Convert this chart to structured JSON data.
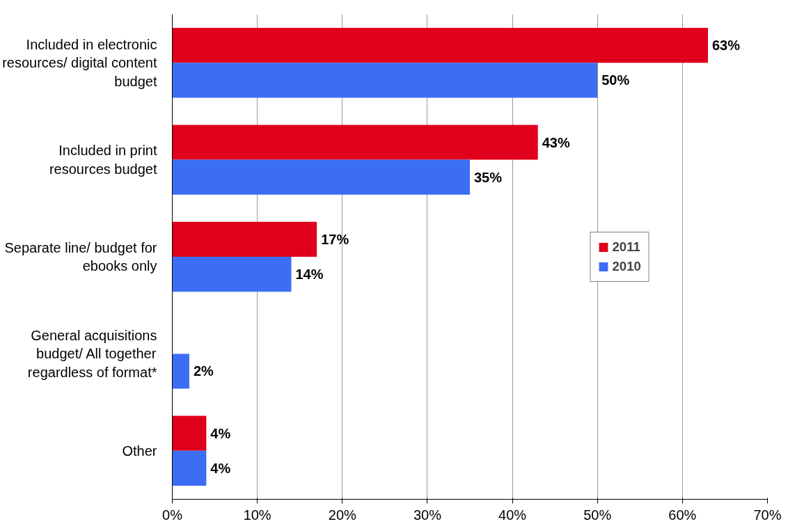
{
  "chart_data": {
    "type": "bar",
    "orientation": "horizontal",
    "categories": [
      "Included in electronic resources/ digital content budget",
      "Included in print resources budget",
      "Separate line/ budget for ebooks only",
      "General acquisitions budget/ All together regardless of format*",
      "Other"
    ],
    "series": [
      {
        "name": "2011",
        "color": "#e0001b",
        "values": [
          63,
          43,
          17,
          null,
          4
        ],
        "value_labels": [
          "63%",
          "43%",
          "17%",
          null,
          "4%"
        ]
      },
      {
        "name": "2010",
        "color": "#3b6ef5",
        "values": [
          50,
          35,
          14,
          2,
          4
        ],
        "value_labels": [
          "50%",
          "35%",
          "14%",
          "2%",
          "4%"
        ]
      }
    ],
    "xlim": [
      0,
      70
    ],
    "xticks": [
      {
        "value": 0,
        "label": "0%"
      },
      {
        "value": 10,
        "label": "10%"
      },
      {
        "value": 20,
        "label": "20%"
      },
      {
        "value": 30,
        "label": "30%"
      },
      {
        "value": 40,
        "label": "40%"
      },
      {
        "value": 50,
        "label": "50%"
      },
      {
        "value": 60,
        "label": "60%"
      },
      {
        "value": 70,
        "label": "70%"
      }
    ],
    "grid": "x",
    "legend": "right"
  }
}
